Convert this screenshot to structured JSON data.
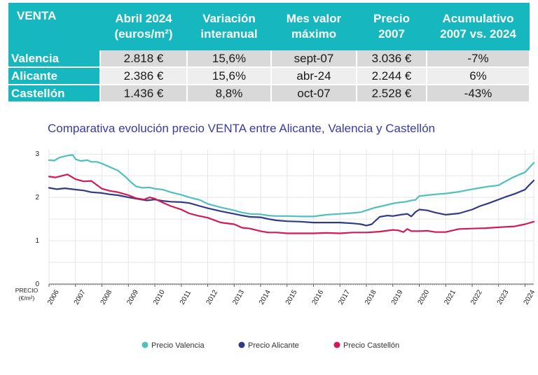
{
  "table": {
    "headers": [
      "VENTA",
      "Abril 2024\n(euros/m²)",
      "Variación\ninteranual",
      "Mes valor\nmáximo",
      "Precio\n2007",
      "Acumulativo\n2007 vs. 2024"
    ],
    "rows": [
      {
        "name": "Valencia",
        "cells": [
          "2.818 €",
          "15,6%",
          "sept-07",
          "3.036 €",
          "-7%"
        ]
      },
      {
        "name": "Alicante",
        "cells": [
          "2.386 €",
          "15,6%",
          "abr-24",
          "2.244 €",
          "6%"
        ]
      },
      {
        "name": "Castellón",
        "cells": [
          "1.436 €",
          "8,8%",
          "oct-07",
          "2.528 €",
          "-43%"
        ]
      }
    ]
  },
  "colors": {
    "header_bg": "#17b7bf",
    "valencia": "#4fc0bd",
    "alicante": "#2f3b85",
    "castellon": "#d21a55",
    "title": "#3a3aa0"
  },
  "chart_data": {
    "type": "line",
    "title": "Comparativa evolución precio VENTA entre Alicante, Valencia y Castellón",
    "ylabel": "PRECIO\n(€/m²)",
    "xlabel": "",
    "ylim": [
      0,
      3.1
    ],
    "xlim": [
      2006.0,
      2024.33
    ],
    "yticks": [
      0,
      1,
      2,
      3
    ],
    "xticks": [
      "2006",
      "2007",
      "2008",
      "2009",
      "2010",
      "2011",
      "2012",
      "2013",
      "2014",
      "2015",
      "2016",
      "2017",
      "2018",
      "2019",
      "2020",
      "2021",
      "2022",
      "2023",
      "2024"
    ],
    "grid": true,
    "legend_position": "bottom",
    "series": [
      {
        "name": "Precio Valencia",
        "color": "#4fc0bd",
        "x": [
          2006.0,
          2006.2,
          2006.4,
          2006.6,
          2006.75,
          2006.9,
          2007.0,
          2007.2,
          2007.45,
          2007.6,
          2007.8,
          2008.0,
          2008.3,
          2008.6,
          2008.9,
          2009.1,
          2009.3,
          2009.55,
          2009.8,
          2010.0,
          2010.3,
          2010.6,
          2011.0,
          2011.3,
          2011.7,
          2012.0,
          2012.5,
          2013.0,
          2013.3,
          2013.6,
          2014.0,
          2014.3,
          2014.6,
          2015.0,
          2015.5,
          2016.0,
          2016.5,
          2017.0,
          2017.5,
          2017.8,
          2018.0,
          2018.3,
          2018.6,
          2019.0,
          2019.2,
          2019.5,
          2019.7,
          2019.85,
          2020.0,
          2020.3,
          2020.6,
          2021.0,
          2021.5,
          2022.0,
          2022.3,
          2022.6,
          2023.0,
          2023.2,
          2023.5,
          2023.8,
          2024.0,
          2024.15,
          2024.33
        ],
        "values": [
          2.86,
          2.85,
          2.92,
          2.95,
          2.97,
          2.98,
          2.88,
          2.84,
          2.86,
          2.82,
          2.82,
          2.78,
          2.7,
          2.62,
          2.47,
          2.35,
          2.25,
          2.22,
          2.23,
          2.2,
          2.18,
          2.12,
          2.06,
          2.0,
          1.94,
          1.85,
          1.77,
          1.7,
          1.65,
          1.62,
          1.61,
          1.58,
          1.57,
          1.57,
          1.56,
          1.56,
          1.6,
          1.62,
          1.64,
          1.66,
          1.7,
          1.76,
          1.8,
          1.86,
          1.88,
          1.9,
          1.93,
          1.94,
          2.03,
          2.05,
          2.07,
          2.09,
          2.13,
          2.19,
          2.22,
          2.25,
          2.28,
          2.35,
          2.45,
          2.53,
          2.58,
          2.68,
          2.8
        ]
      },
      {
        "name": "Precio Alicante",
        "color": "#2f3b85",
        "x": [
          2006.0,
          2006.3,
          2006.6,
          2007.0,
          2007.3,
          2007.6,
          2008.0,
          2008.3,
          2008.6,
          2009.0,
          2009.3,
          2009.7,
          2010.0,
          2010.3,
          2010.6,
          2011.0,
          2011.3,
          2011.7,
          2012.0,
          2012.5,
          2013.0,
          2013.3,
          2013.6,
          2014.0,
          2014.3,
          2014.6,
          2015.0,
          2015.5,
          2016.0,
          2016.5,
          2017.0,
          2017.5,
          2017.8,
          2018.0,
          2018.2,
          2018.5,
          2018.8,
          2019.0,
          2019.3,
          2019.55,
          2019.7,
          2019.85,
          2020.0,
          2020.3,
          2020.6,
          2021.0,
          2021.5,
          2022.0,
          2022.3,
          2022.6,
          2023.0,
          2023.3,
          2023.6,
          2024.0,
          2024.15,
          2024.33
        ],
        "values": [
          2.22,
          2.19,
          2.21,
          2.18,
          2.16,
          2.12,
          2.1,
          2.07,
          2.05,
          2.0,
          1.97,
          1.93,
          1.95,
          1.92,
          1.9,
          1.89,
          1.87,
          1.8,
          1.75,
          1.68,
          1.62,
          1.58,
          1.55,
          1.54,
          1.5,
          1.47,
          1.45,
          1.44,
          1.42,
          1.42,
          1.42,
          1.4,
          1.38,
          1.35,
          1.38,
          1.55,
          1.58,
          1.57,
          1.6,
          1.62,
          1.56,
          1.66,
          1.72,
          1.7,
          1.65,
          1.6,
          1.63,
          1.72,
          1.8,
          1.86,
          1.95,
          2.02,
          2.08,
          2.18,
          2.28,
          2.39
        ]
      },
      {
        "name": "Precio Castellón",
        "color": "#d21a55",
        "x": [
          2006.0,
          2006.25,
          2006.5,
          2006.7,
          2007.0,
          2007.3,
          2007.6,
          2008.0,
          2008.3,
          2008.6,
          2009.0,
          2009.3,
          2009.6,
          2009.8,
          2010.0,
          2010.3,
          2010.6,
          2011.0,
          2011.3,
          2011.6,
          2012.0,
          2012.5,
          2013.0,
          2013.3,
          2013.6,
          2014.0,
          2014.3,
          2014.6,
          2015.0,
          2015.5,
          2016.0,
          2016.5,
          2017.0,
          2017.5,
          2018.0,
          2018.5,
          2019.0,
          2019.2,
          2019.4,
          2019.55,
          2019.7,
          2020.0,
          2020.3,
          2020.6,
          2021.0,
          2021.5,
          2022.0,
          2022.5,
          2023.0,
          2023.3,
          2023.6,
          2024.0,
          2024.33
        ],
        "values": [
          2.48,
          2.46,
          2.5,
          2.53,
          2.42,
          2.37,
          2.38,
          2.2,
          2.15,
          2.12,
          2.05,
          1.98,
          1.95,
          2.0,
          1.97,
          1.88,
          1.8,
          1.72,
          1.63,
          1.58,
          1.53,
          1.42,
          1.38,
          1.3,
          1.28,
          1.22,
          1.19,
          1.19,
          1.17,
          1.17,
          1.17,
          1.18,
          1.17,
          1.19,
          1.19,
          1.21,
          1.25,
          1.24,
          1.2,
          1.27,
          1.22,
          1.22,
          1.23,
          1.2,
          1.2,
          1.27,
          1.28,
          1.29,
          1.31,
          1.32,
          1.33,
          1.38,
          1.44
        ]
      }
    ]
  }
}
